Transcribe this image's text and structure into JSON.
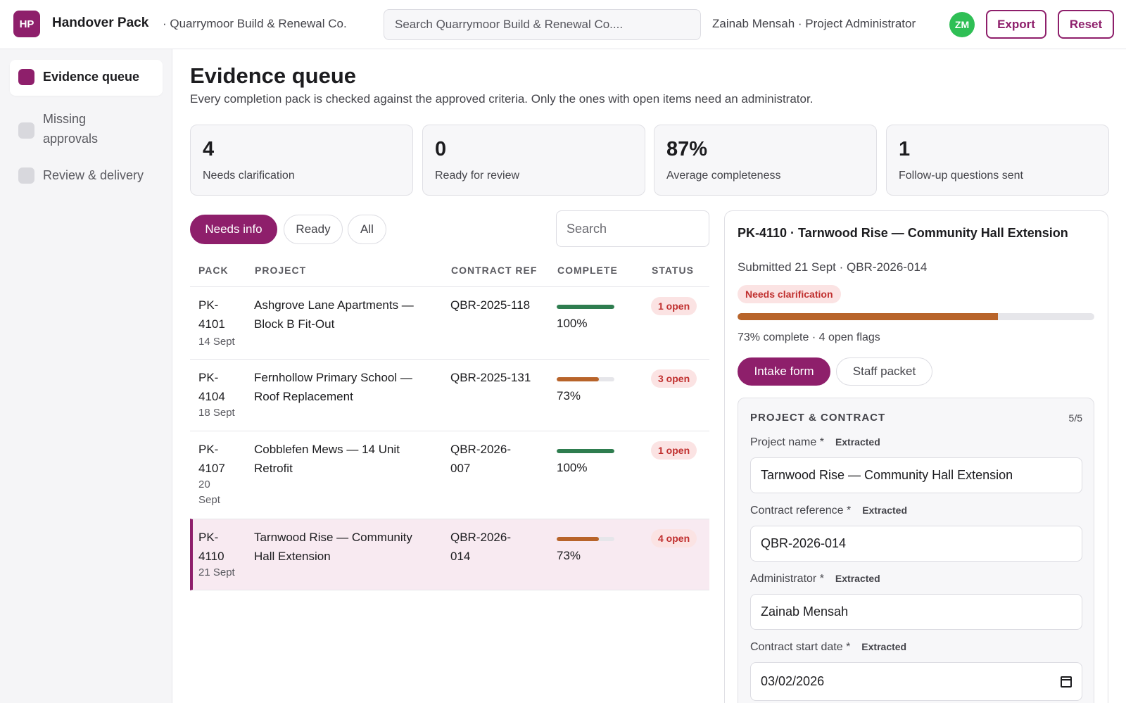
{
  "header": {
    "logo_text": "HP",
    "app_title": "Handover Pack",
    "org_name": "· Quarrymoor Build & Renewal Co.",
    "search_placeholder": "Search Quarrymoor Build & Renewal Co....",
    "user_label": "Zainab Mensah · Project Administrator",
    "avatar_initials": "ZM",
    "export_label": "Export",
    "reset_label": "Reset"
  },
  "sidebar": {
    "items": [
      {
        "label": "Evidence queue",
        "active": true
      },
      {
        "label": "Missing approvals",
        "active": false
      },
      {
        "label": "Review & delivery",
        "active": false
      }
    ]
  },
  "main": {
    "title": "Evidence queue",
    "subtitle": "Every completion pack is checked against the approved criteria. Only the ones with open items need an administrator.",
    "stats": [
      {
        "value": "4",
        "label": "Needs clarification"
      },
      {
        "value": "0",
        "label": "Ready for review"
      },
      {
        "value": "87%",
        "label": "Average completeness"
      },
      {
        "value": "1",
        "label": "Follow-up questions sent"
      }
    ],
    "filters": [
      {
        "label": "Needs info",
        "active": true
      },
      {
        "label": "Ready",
        "active": false
      },
      {
        "label": "All",
        "active": false
      }
    ],
    "table_search_placeholder": "Search",
    "columns": [
      "PACK",
      "PROJECT",
      "CONTRACT REF",
      "COMPLETE",
      "STATUS"
    ],
    "rows": [
      {
        "pack_id": "PK-4101",
        "date": "14 Sept",
        "project": "Ashgrove Lane Apartments — Block B Fit-Out",
        "contract_ref": "QBR-2025-118",
        "complete_pct": 100,
        "complete_label": "100%",
        "status": "1 open",
        "selected": false
      },
      {
        "pack_id": "PK-4104",
        "date": "18 Sept",
        "project": "Fernhollow Primary School — Roof Replacement",
        "contract_ref": "QBR-2025-131",
        "complete_pct": 73,
        "complete_label": "73%",
        "status": "3 open",
        "selected": false
      },
      {
        "pack_id": "PK-4107",
        "date": "20 Sept",
        "project": "Cobblefen Mews — 14 Unit Retrofit",
        "contract_ref": "QBR-2026-007",
        "complete_pct": 100,
        "complete_label": "100%",
        "status": "1 open",
        "selected": false
      },
      {
        "pack_id": "PK-4110",
        "date": "21 Sept",
        "project": "Tarnwood Rise — Community Hall Extension",
        "contract_ref": "QBR-2026-014",
        "complete_pct": 73,
        "complete_label": "73%",
        "status": "4 open",
        "selected": true
      }
    ]
  },
  "detail": {
    "title": "PK-4110 · Tarnwood Rise — Community Hall Extension",
    "subtitle": "Submitted 21 Sept · QBR-2026-014",
    "badge": "Needs clarification",
    "progress_pct": 73,
    "progress_text": "73% complete · 4 open flags",
    "tabs": [
      {
        "label": "Intake form",
        "active": true
      },
      {
        "label": "Staff packet",
        "active": false
      }
    ],
    "section": {
      "title": "PROJECT & CONTRACT",
      "count": "5/5",
      "fields": [
        {
          "label": "Project name *",
          "tag": "Extracted",
          "value": "Tarnwood Rise — Community Hall Extension"
        },
        {
          "label": "Contract reference *",
          "tag": "Extracted",
          "value": "QBR-2026-014"
        },
        {
          "label": "Administrator *",
          "tag": "Extracted",
          "value": "Zainab Mensah"
        },
        {
          "label": "Contract start date *",
          "tag": "Extracted",
          "value": "03/02/2026"
        }
      ]
    }
  },
  "colors": {
    "accent": "#8e1f6b",
    "progress_full": "#2e7d4f",
    "progress_partial": "#b8642a",
    "badge_bg": "#fbe3e3",
    "badge_text": "#c0302f",
    "avatar": "#2fbf55"
  }
}
